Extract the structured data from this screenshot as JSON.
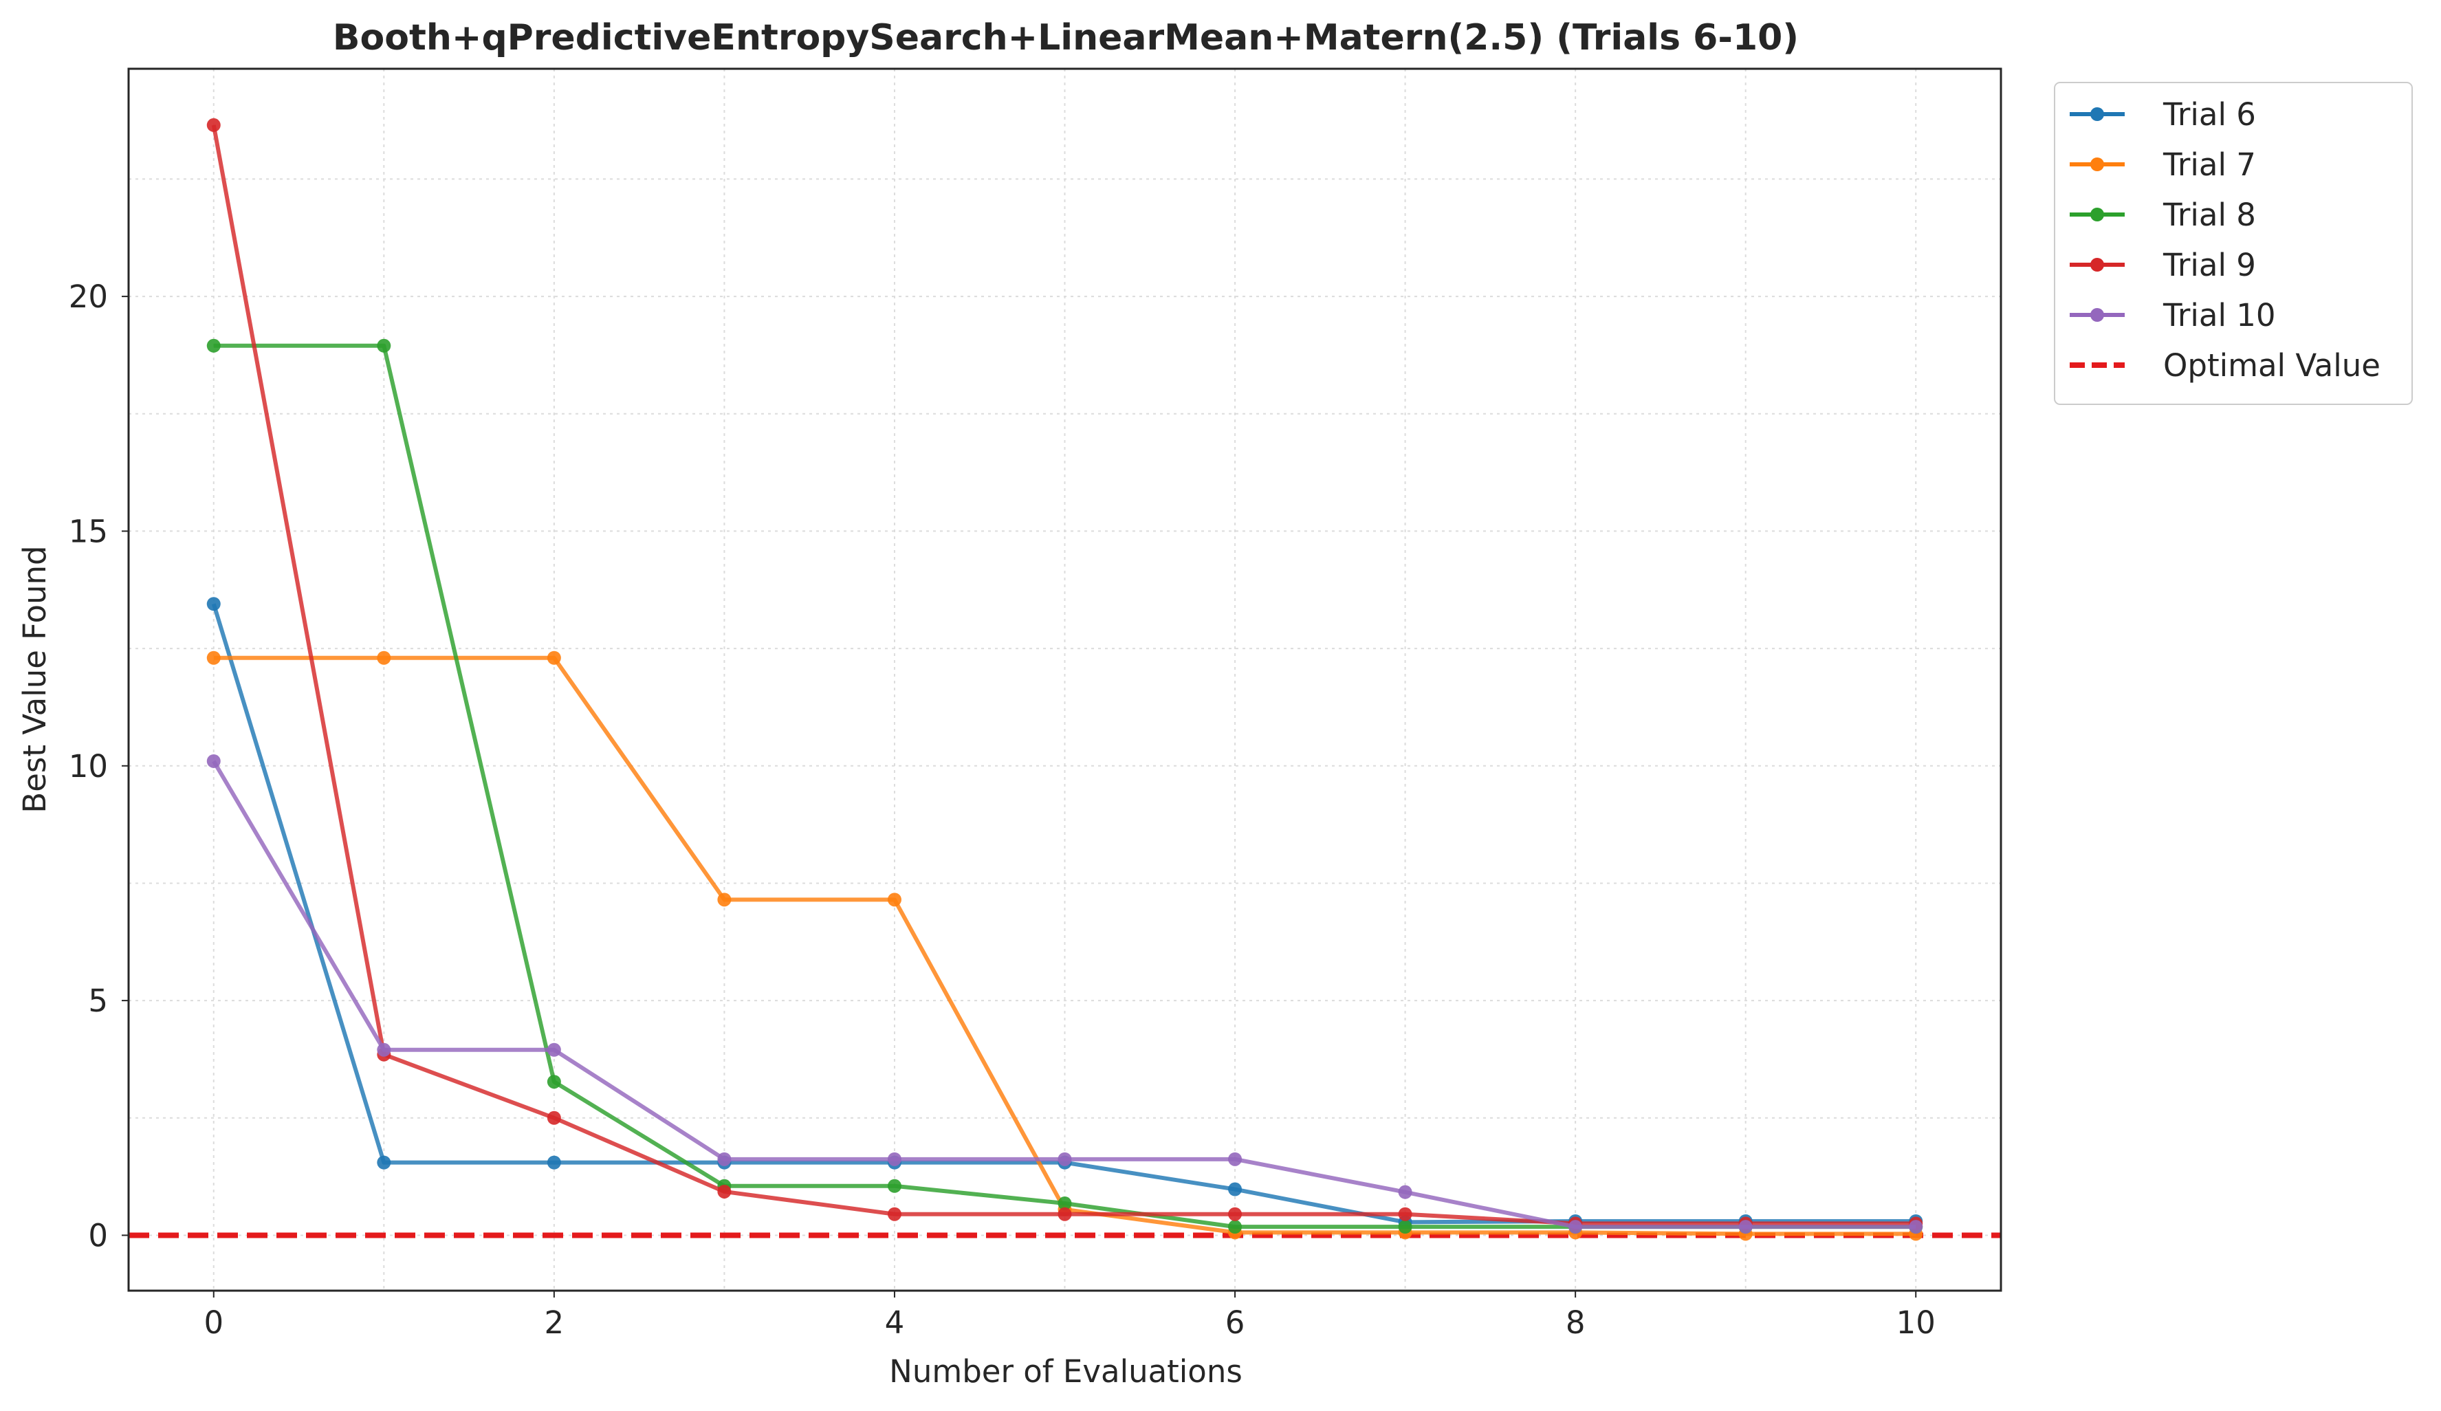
{
  "chart_data": {
    "type": "line",
    "title": "Booth+qPredictiveEntropySearch+LinearMean+Matern(2.5) (Trials 6-10)",
    "xlabel": "Number of Evaluations",
    "ylabel": "Best Value Found",
    "xlim": [
      -0.5,
      10.5
    ],
    "ylim": [
      -1.18,
      24.85
    ],
    "xticks": [
      0,
      2,
      4,
      6,
      8,
      10
    ],
    "yticks": [
      0,
      5,
      10,
      15,
      20
    ],
    "grid": true,
    "legend_position": "outside-top-right",
    "x": [
      0,
      1,
      2,
      3,
      4,
      5,
      6,
      7,
      8,
      9,
      10
    ],
    "series": [
      {
        "name": "Trial 6",
        "color": "#1f77b4",
        "values": [
          13.45,
          1.55,
          1.55,
          1.55,
          1.55,
          1.55,
          0.98,
          0.28,
          0.3,
          0.3,
          0.3
        ]
      },
      {
        "name": "Trial 7",
        "color": "#ff7f0e",
        "values": [
          12.3,
          12.3,
          12.3,
          7.15,
          7.15,
          0.55,
          0.06,
          0.06,
          0.06,
          0.03,
          0.03
        ]
      },
      {
        "name": "Trial 8",
        "color": "#2ca02c",
        "values": [
          18.95,
          18.95,
          3.27,
          1.05,
          1.05,
          0.68,
          0.18,
          0.18,
          0.18,
          0.18,
          0.18
        ]
      },
      {
        "name": "Trial 9",
        "color": "#d62728",
        "values": [
          23.65,
          3.85,
          2.5,
          0.93,
          0.45,
          0.45,
          0.45,
          0.45,
          0.25,
          0.25,
          0.25
        ]
      },
      {
        "name": "Trial 10",
        "color": "#9467bd",
        "values": [
          10.1,
          3.95,
          3.95,
          1.62,
          1.62,
          1.62,
          1.62,
          0.92,
          0.18,
          0.18,
          0.18
        ]
      }
    ],
    "reference_line": {
      "name": "Optimal Value",
      "y": 0,
      "color": "#e41a1c",
      "style": "dashed"
    }
  }
}
